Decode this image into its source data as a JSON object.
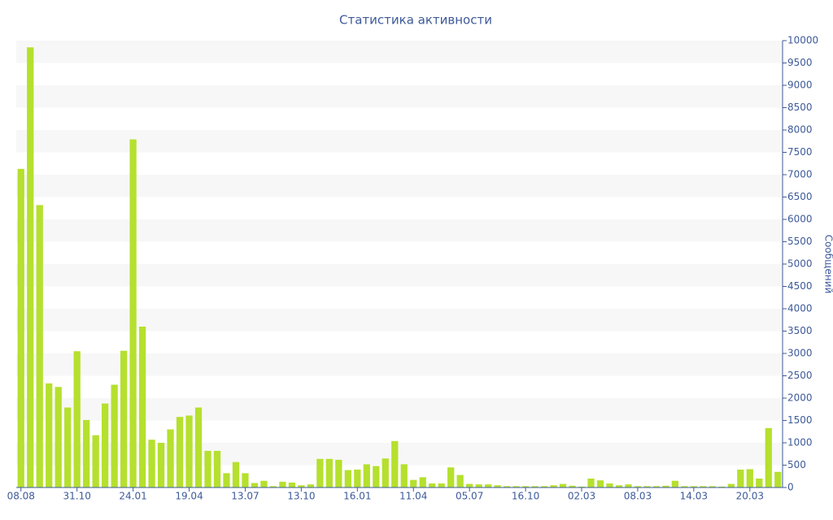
{
  "chart_data": {
    "type": "bar",
    "title": "Статистика активности",
    "y_label": "Сообщений",
    "categories": [
      "08.08",
      null,
      null,
      null,
      null,
      null,
      "31.10",
      null,
      null,
      null,
      null,
      null,
      "24.01",
      null,
      null,
      null,
      null,
      null,
      "19.04",
      null,
      null,
      null,
      null,
      null,
      "13.07",
      null,
      null,
      null,
      null,
      null,
      "13.10",
      null,
      null,
      null,
      null,
      null,
      "16.01",
      null,
      null,
      null,
      null,
      null,
      "11.04",
      null,
      null,
      null,
      null,
      null,
      "05.07",
      null,
      null,
      null,
      null,
      null,
      "16.10",
      null,
      null,
      null,
      null,
      null,
      "02.03",
      null,
      null,
      null,
      null,
      null,
      "08.03",
      null,
      null,
      null,
      null,
      null,
      "14.03",
      null,
      null,
      null,
      null,
      null,
      "20.03",
      null,
      null,
      null
    ],
    "values": [
      7130,
      9850,
      6320,
      2330,
      2250,
      1790,
      3050,
      1510,
      1170,
      1880,
      2300,
      3060,
      7790,
      3600,
      1070,
      1000,
      1300,
      1580,
      1610,
      1790,
      820,
      820,
      320,
      570,
      320,
      100,
      150,
      30,
      130,
      110,
      50,
      70,
      640,
      640,
      620,
      390,
      400,
      520,
      480,
      650,
      1040,
      520,
      170,
      230,
      90,
      90,
      450,
      280,
      80,
      70,
      70,
      50,
      30,
      30,
      30,
      30,
      30,
      50,
      80,
      40,
      20,
      200,
      160,
      90,
      50,
      70,
      30,
      30,
      30,
      40,
      150,
      30,
      30,
      30,
      30,
      20,
      80,
      400,
      410,
      200,
      1330,
      350
    ],
    "color": "#b5e02e",
    "ylim": [
      0,
      10000
    ],
    "yticks": [
      0,
      500,
      1000,
      1500,
      2000,
      2500,
      3000,
      3500,
      4000,
      4500,
      5000,
      5500,
      6000,
      6500,
      7000,
      7500,
      8000,
      8500,
      9000,
      9500,
      10000
    ],
    "y_axis_side": "right",
    "grid": true
  }
}
